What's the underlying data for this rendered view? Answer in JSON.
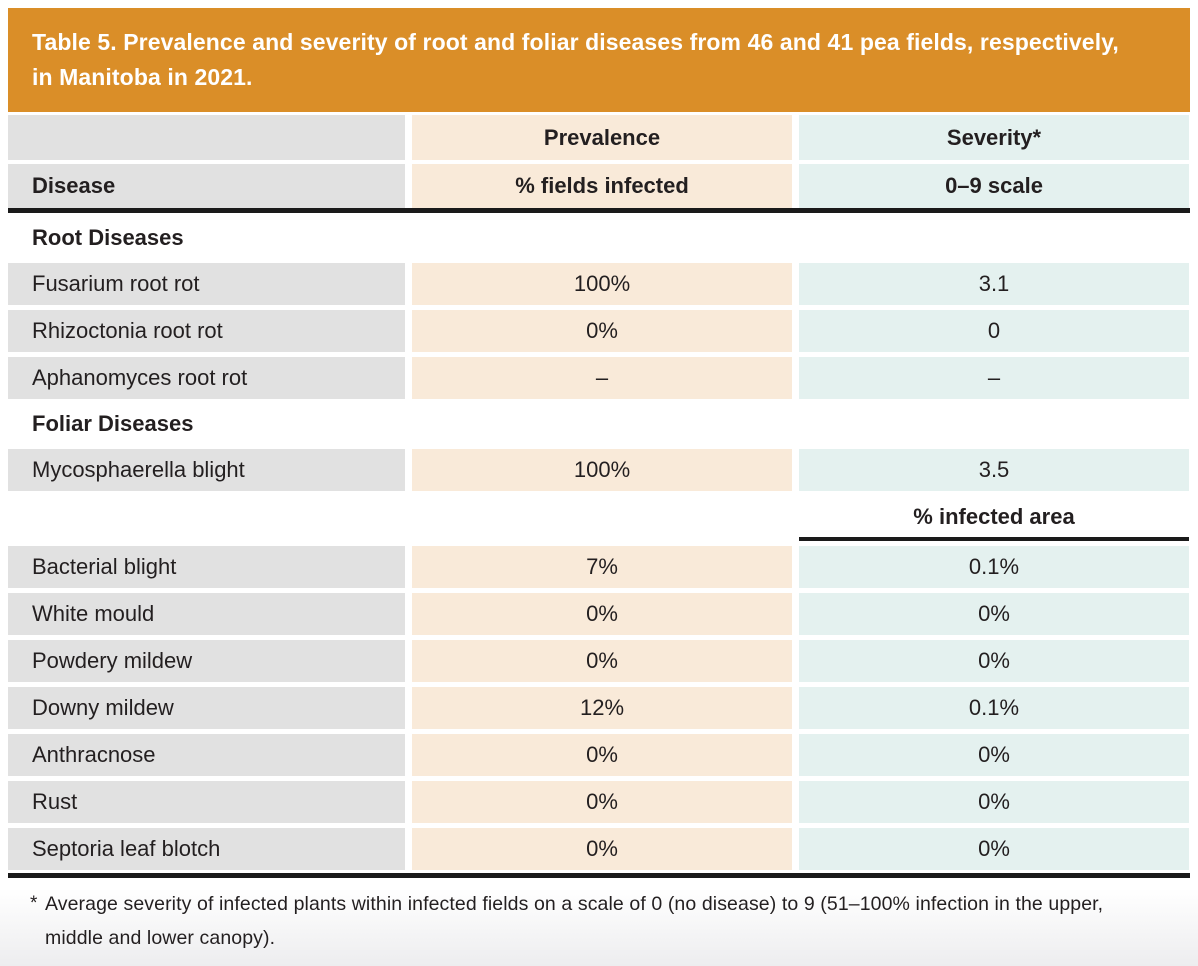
{
  "table": {
    "title": "Table 5. Prevalence and severity of root and foliar diseases from 46 and 41 pea fields, respectively,\nin Manitoba in 2021.",
    "header": {
      "disease": "Disease",
      "prevalence_group": "Prevalence",
      "prevalence_sub": "% fields infected",
      "severity_group": "Severity*",
      "severity_sub": "0–9 scale"
    },
    "rows": [
      {
        "type": "section",
        "label": "Root Diseases"
      },
      {
        "type": "data",
        "disease": "Fusarium root rot",
        "prevalence": "100%",
        "severity": "3.1"
      },
      {
        "type": "data",
        "disease": "Rhizoctonia root rot",
        "prevalence": "0%",
        "severity": "0"
      },
      {
        "type": "data",
        "disease": "Aphanomyces root rot",
        "prevalence": "–",
        "severity": "–"
      },
      {
        "type": "section",
        "label": "Foliar Diseases"
      },
      {
        "type": "data",
        "disease": "Mycosphaerella blight",
        "prevalence": "100%",
        "severity": "3.5"
      },
      {
        "type": "subheader",
        "severity_label": "% infected area"
      },
      {
        "type": "data",
        "disease": "Bacterial blight",
        "prevalence": "7%",
        "severity": "0.1%"
      },
      {
        "type": "data",
        "disease": "White mould",
        "prevalence": "0%",
        "severity": "0%"
      },
      {
        "type": "data",
        "disease": "Powdery mildew",
        "prevalence": "0%",
        "severity": "0%"
      },
      {
        "type": "data",
        "disease": "Downy mildew",
        "prevalence": "12%",
        "severity": "0.1%"
      },
      {
        "type": "data",
        "disease": "Anthracnose",
        "prevalence": "0%",
        "severity": "0%"
      },
      {
        "type": "data",
        "disease": "Rust",
        "prevalence": "0%",
        "severity": "0%"
      },
      {
        "type": "data",
        "disease": "Septoria leaf blotch",
        "prevalence": "0%",
        "severity": "0%"
      }
    ],
    "footnote_marker": "*",
    "footnote": "Average severity of infected plants within infected fields on a scale of 0 (no disease) to 9 (51–100% infection in the upper,\nmiddle and lower canopy)."
  },
  "colors": {
    "banner_orange": "#da8e28",
    "disease_column_gray": "#e1e1e1",
    "prevalence_column_peach": "#f9ead9",
    "severity_column_mint": "#e4f1ef",
    "rule_black": "#1a1a1a",
    "text": "#231f20",
    "title_text": "#ffffff"
  }
}
